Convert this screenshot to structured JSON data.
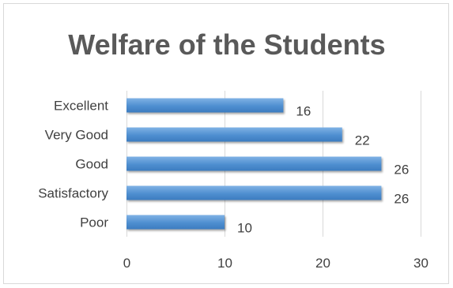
{
  "chart_data": {
    "type": "bar",
    "orientation": "horizontal",
    "title": "Welfare of the Students",
    "categories": [
      "Excellent",
      "Very Good",
      "Good",
      "Satisfactory",
      "Poor"
    ],
    "values": [
      16,
      22,
      26,
      26,
      10
    ],
    "xlim": [
      0,
      30
    ],
    "x_ticks": [
      0,
      10,
      20,
      30
    ],
    "grid": "vertical",
    "legend": "none",
    "bar_color": "#5b9bd5"
  }
}
